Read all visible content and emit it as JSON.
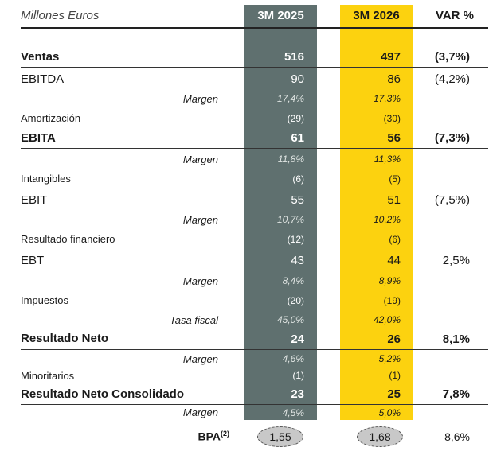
{
  "header": {
    "title": "Millones Euros",
    "col_2025": "3M 2025",
    "col_2026": "3M 2026",
    "col_var": "VAR %"
  },
  "rows": {
    "ventas": {
      "label": "Ventas",
      "v25": "516",
      "v26": "497",
      "var": "(3,7%)"
    },
    "ebitda": {
      "label": "EBITDA",
      "v25": "90",
      "v26": "86",
      "var": "(4,2%)"
    },
    "ebitda_margin": {
      "label": "Margen",
      "v25": "17,4%",
      "v26": "17,3%"
    },
    "amortizacion": {
      "label": "Amortización",
      "v25": "(29)",
      "v26": "(30)"
    },
    "ebita": {
      "label": "EBITA",
      "v25": "61",
      "v26": "56",
      "var": "(7,3%)"
    },
    "ebita_margin": {
      "label": "Margen",
      "v25": "11,8%",
      "v26": "11,3%"
    },
    "intangibles": {
      "label": "Intangibles",
      "v25": "(6)",
      "v26": "(5)"
    },
    "ebit": {
      "label": "EBIT",
      "v25": "55",
      "v26": "51",
      "var": "(7,5%)"
    },
    "ebit_margin": {
      "label": "Margen",
      "v25": "10,7%",
      "v26": "10,2%"
    },
    "financiero": {
      "label": "Resultado financiero",
      "v25": "(12)",
      "v26": "(6)"
    },
    "ebt": {
      "label": "EBT",
      "v25": "43",
      "v26": "44",
      "var": "2,5%"
    },
    "ebt_margin": {
      "label": "Margen",
      "v25": "8,4%",
      "v26": "8,9%"
    },
    "impuestos": {
      "label": "Impuestos",
      "v25": "(20)",
      "v26": "(19)"
    },
    "tasa": {
      "label": "Tasa fiscal",
      "v25": "45,0%",
      "v26": "42,0%"
    },
    "neto": {
      "label": "Resultado Neto",
      "v25": "24",
      "v26": "26",
      "var": "8,1%"
    },
    "neto_margin": {
      "label": "Margen",
      "v25": "4,6%",
      "v26": "5,2%"
    },
    "minoritarios": {
      "label": "Minoritarios",
      "v25": "(1)",
      "v26": "(1)"
    },
    "consolidado": {
      "label": "Resultado Neto Consolidado",
      "v25": "23",
      "v26": "25",
      "var": "7,8%"
    },
    "cons_margin": {
      "label": "Margen",
      "v25": "4,5%",
      "v26": "5,0%"
    }
  },
  "bpa": {
    "label": "BPA",
    "sup": "(2)",
    "v25": "1,55",
    "v26": "1,68",
    "var": "8,6%"
  },
  "colors": {
    "col_2025": "#5f706f",
    "col_2026": "#fcd20f"
  }
}
